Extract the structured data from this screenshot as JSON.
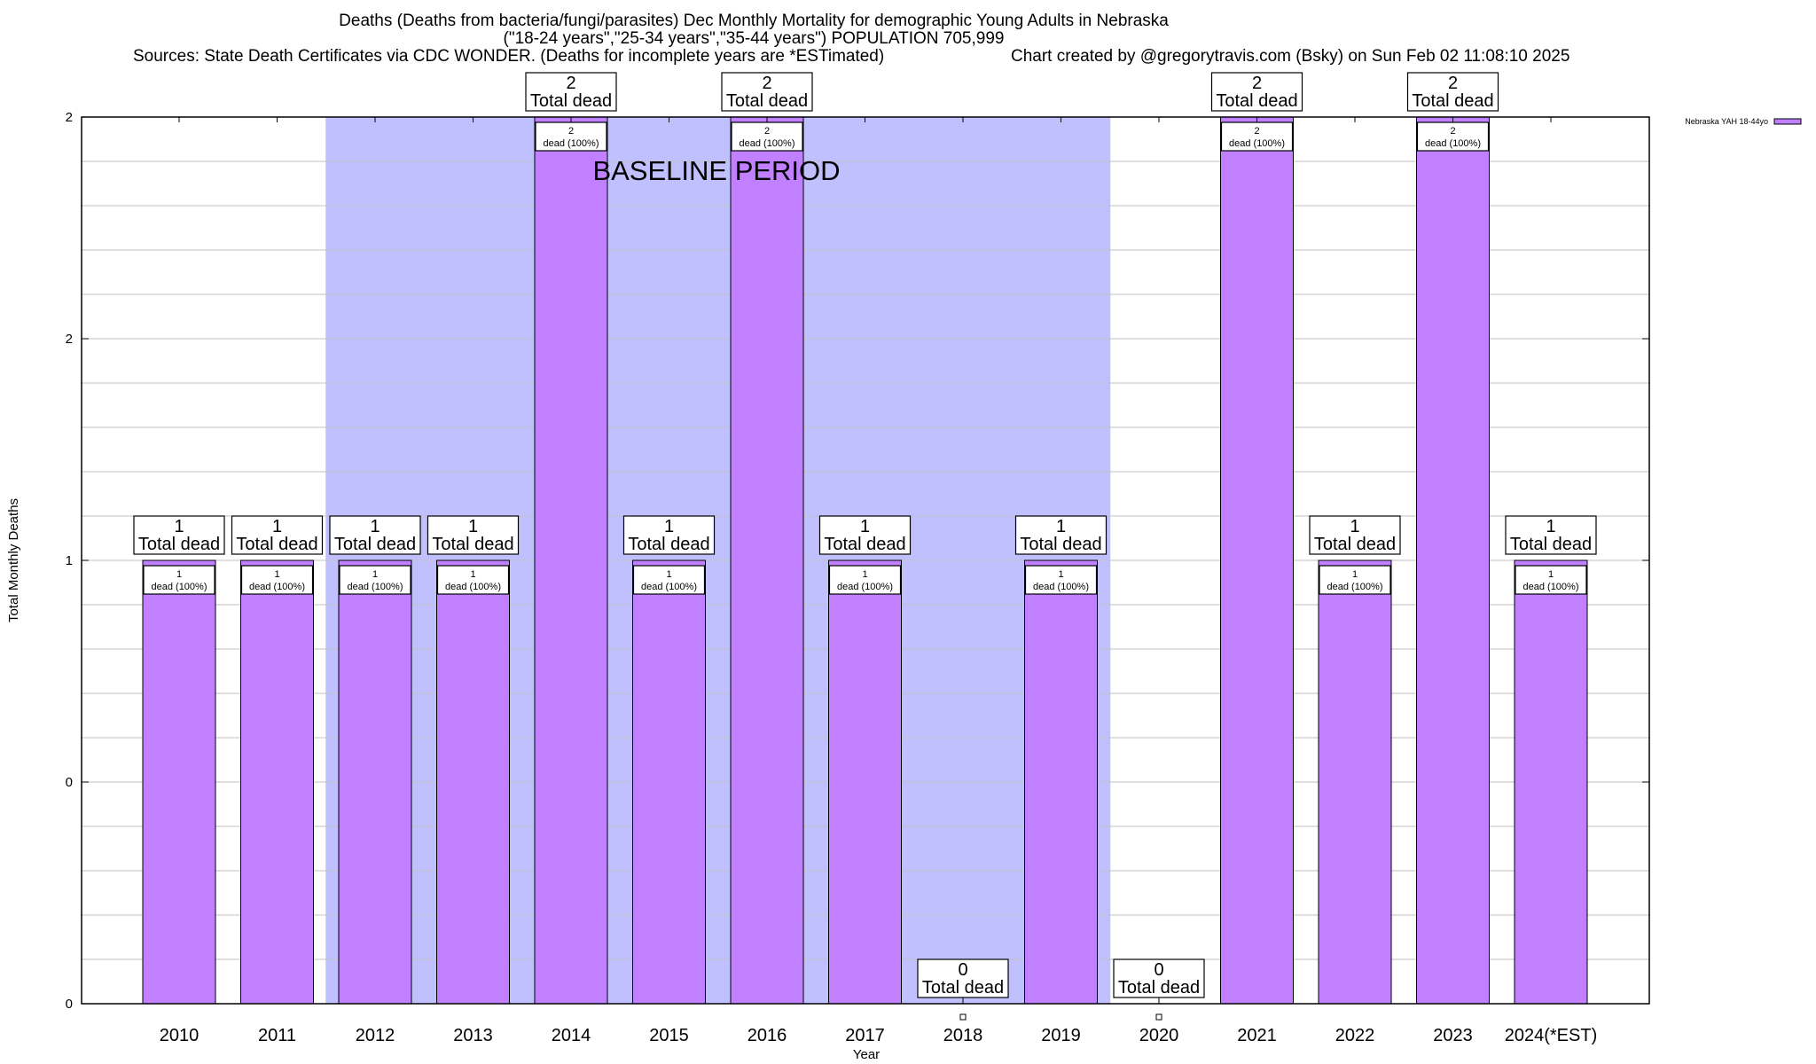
{
  "chart_data": {
    "type": "bar",
    "title": "Deaths (Deaths from bacteria/fungi/parasites) Dec Monthly Mortality for demographic Young Adults in Nebraska",
    "subtitle": "(\"18-24 years\",\"25-34 years\",\"35-44 years\") POPULATION 705,999",
    "sources": "Sources: State Death Certificates via CDC WONDER. (Deaths for incomplete years are *ESTimated)",
    "credit": "Chart created by @gregorytravis.com (Bsky) on Sun Feb 02 11:08:10 2025",
    "xlabel": "Year",
    "ylabel": "Total Monthly Deaths",
    "ylim": [
      0,
      2
    ],
    "yticks": [
      0,
      0.5,
      1,
      1.5,
      2
    ],
    "ytick_labels": [
      "0",
      "0",
      "1",
      "2",
      "2"
    ],
    "minor_grid_step": 0.1,
    "grid": true,
    "legend": {
      "position": "top-right",
      "entries": [
        {
          "label": "Nebraska YAH 18-44yo",
          "color": "#c080ff"
        }
      ]
    },
    "categories": [
      "2010",
      "2011",
      "2012",
      "2013",
      "2014",
      "2015",
      "2016",
      "2017",
      "2018",
      "2019",
      "2020",
      "2021",
      "2022",
      "2023",
      "2024(*EST)"
    ],
    "series": [
      {
        "name": "Nebraska YAH 18-44yo",
        "color": "#c080ff",
        "values": [
          1,
          1,
          1,
          1,
          2,
          1,
          2,
          1,
          0,
          1,
          0,
          2,
          1,
          2,
          1
        ]
      }
    ],
    "total_label_suffix": "Total dead",
    "inner_label_suffix": "dead (100%)",
    "annotations": [
      {
        "text": "BASELINE PERIOD",
        "type": "shaded-region",
        "from_category": "2012",
        "to_category": "2019",
        "color": "#c0c0ff"
      }
    ]
  }
}
